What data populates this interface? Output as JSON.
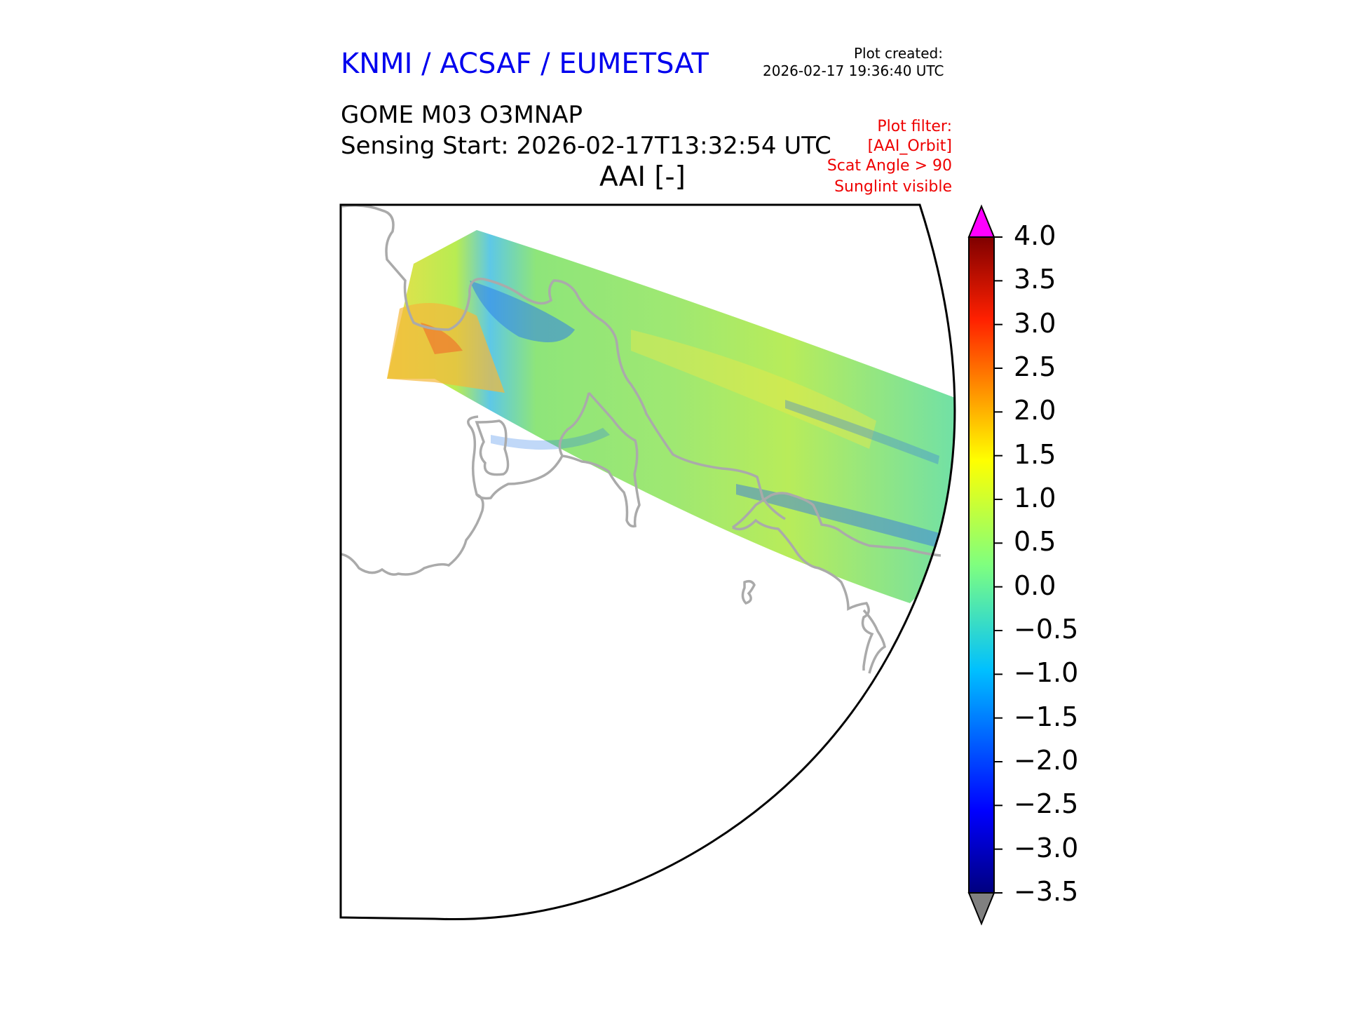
{
  "header": {
    "organisation": "KNMI / ACSAF / EUMETSAT",
    "plot_created_label": "Plot created:",
    "plot_created_time": "2026-02-17 19:36:40 UTC",
    "product": "GOME M03 O3MNAP",
    "sensing_start": "Sensing Start: 2026-02-17T13:32:54 UTC",
    "quantity": "AAI [-]",
    "filters": [
      "Plot filter:",
      "[AAI_Orbit]",
      "Scat Angle > 90",
      "Sunglint visible"
    ]
  },
  "colorbar": {
    "min": -3.5,
    "max": 4.0,
    "tick_labels": [
      "4.0",
      "3.5",
      "3.0",
      "2.5",
      "2.0",
      "1.5",
      "1.0",
      "0.5",
      "0.0",
      "−0.5",
      "−1.0",
      "−1.5",
      "−2.0",
      "−2.5",
      "−3.0",
      "−3.5"
    ],
    "colormap": "jet",
    "over_color": "#ff00ff",
    "under_color": "#808080"
  },
  "map": {
    "coastline_color": "#aaaaaa",
    "swath_typical_aai": "-0.5 to 1.5"
  }
}
